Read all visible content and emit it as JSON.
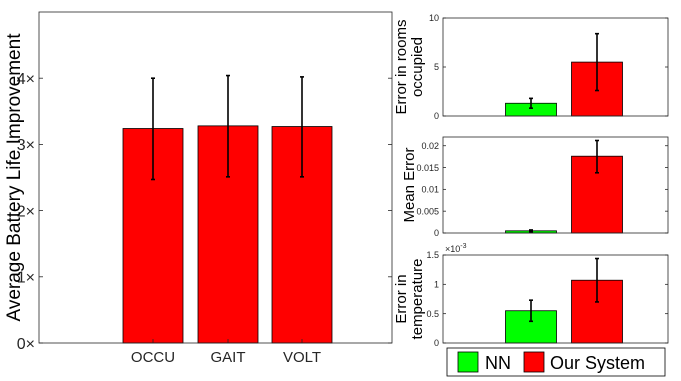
{
  "colors": {
    "red": "#ff0000",
    "green": "#00ff00",
    "axis": "#262626",
    "errorbar": "#000000"
  },
  "legend": {
    "entries": [
      {
        "name": "NN",
        "color": "#00ff00"
      },
      {
        "name": "Our System",
        "color": "#ff0000"
      }
    ],
    "placement": "bottom-right"
  },
  "chart_data": [
    {
      "id": "main",
      "type": "bar",
      "categories": [
        "OCCU",
        "GAIT",
        "VOLT"
      ],
      "series": [
        {
          "values": [
            3.24,
            3.28,
            3.27
          ],
          "err_low": [
            2.47,
            2.51,
            2.51
          ],
          "err_high": [
            4.0,
            4.04,
            4.02
          ],
          "color": "#ff0000"
        }
      ],
      "ylabel": "Average Battery Life Improvement",
      "ylim": [
        0,
        5
      ],
      "yticks": [
        0,
        1,
        2,
        3,
        4
      ],
      "ytick_labels": [
        "0×",
        "1×",
        "2×",
        "3×",
        "4×"
      ],
      "grid": false
    },
    {
      "id": "rooms",
      "type": "bar",
      "categories": [
        "NN",
        "Our System"
      ],
      "series": [
        {
          "values": [
            1.3,
            5.5
          ],
          "err_low": [
            0.8,
            2.6
          ],
          "err_high": [
            1.8,
            8.4
          ],
          "colors": [
            "#00ff00",
            "#ff0000"
          ]
        }
      ],
      "ylabel": [
        "Error in rooms",
        "occupied"
      ],
      "ylim": [
        0,
        10
      ],
      "yticks": [
        0,
        5,
        10
      ],
      "ytick_labels": [
        "0",
        "5",
        "10"
      ]
    },
    {
      "id": "mean",
      "type": "bar",
      "categories": [
        "NN",
        "Our System"
      ],
      "series": [
        {
          "values": [
            0.0005,
            0.0176
          ],
          "err_low": [
            0.0003,
            0.0138
          ],
          "err_high": [
            0.0007,
            0.0212
          ],
          "colors": [
            "#00ff00",
            "#ff0000"
          ]
        }
      ],
      "ylabel": [
        "Mean Error"
      ],
      "ylim": [
        0,
        0.022
      ],
      "yticks": [
        0,
        0.005,
        0.01,
        0.015,
        0.02
      ],
      "ytick_labels": [
        "0",
        "0.005",
        "0.01",
        "0.015",
        "0.02"
      ]
    },
    {
      "id": "temp",
      "type": "bar",
      "categories": [
        "NN",
        "Our System"
      ],
      "series": [
        {
          "values": [
            0.55,
            1.07
          ],
          "err_low": [
            0.37,
            0.7
          ],
          "err_high": [
            0.73,
            1.44
          ],
          "colors": [
            "#00ff00",
            "#ff0000"
          ]
        }
      ],
      "ylabel": [
        "Error in",
        "temperature"
      ],
      "ylim": [
        0,
        1.5
      ],
      "yticks": [
        0,
        0.5,
        1,
        1.5
      ],
      "ytick_labels": [
        "0",
        "0.5",
        "1",
        "1.5"
      ],
      "exponent_label": "×10",
      "exponent": "-3"
    }
  ]
}
